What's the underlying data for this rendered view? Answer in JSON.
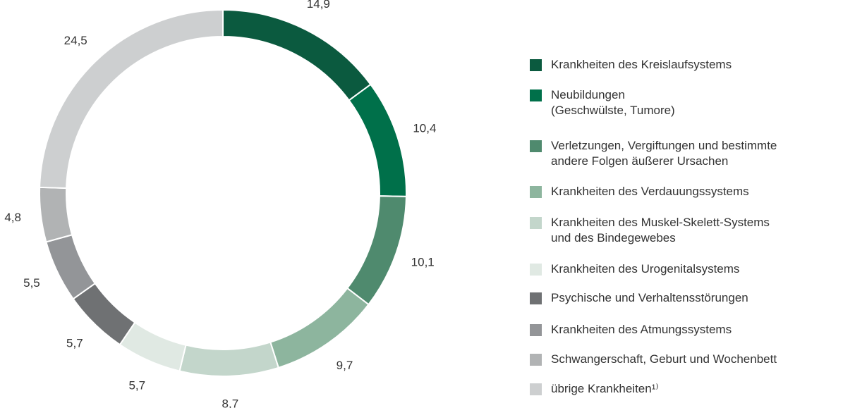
{
  "chart_data": {
    "type": "donut",
    "categories": [
      "Krankheiten des Kreislaufsystems",
      "Neubildungen\n(Geschwülste, Tumore)",
      "Verletzungen, Vergiftungen und bestimmte\nandere Folgen äußerer Ursachen",
      "Krankheiten des Verdauungssystems",
      "Krankheiten des Muskel-Skelett-Systems\nund des Bindegewebes",
      "Krankheiten des Urogenitalsystems",
      "Psychische und Verhaltensstörungen",
      "Krankheiten des Atmungssystems",
      "Schwangerschaft, Geburt und Wochenbett",
      "übrige Krankheiten¹⁾"
    ],
    "values": [
      14.9,
      10.4,
      10.1,
      9.7,
      8.7,
      5.7,
      5.7,
      5.5,
      4.8,
      24.5
    ],
    "value_labels": [
      "14,9",
      "10,4",
      "10,1",
      "9,7",
      "8,7",
      "5,7",
      "5,7",
      "5,5",
      "4,8",
      "24,5"
    ],
    "colors": [
      "#0b5a3f",
      "#00704a",
      "#4f8a6e",
      "#8db59e",
      "#c3d6cb",
      "#e0e9e3",
      "#6f7173",
      "#939598",
      "#b1b3b4",
      "#cdcfd0"
    ]
  }
}
